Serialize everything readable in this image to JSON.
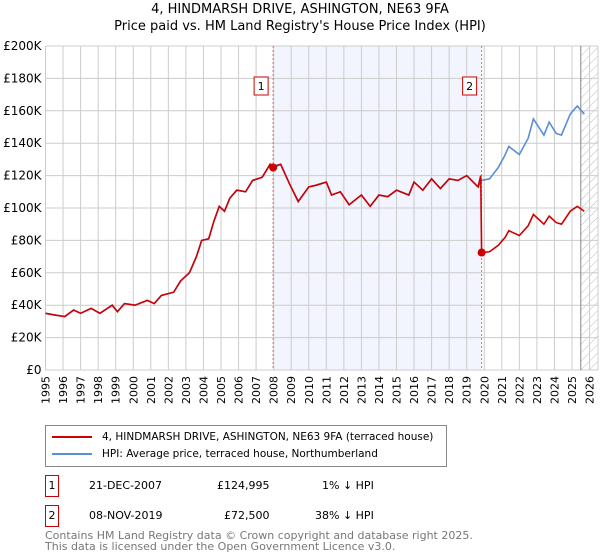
{
  "title": "4, HINDMARSH DRIVE, ASHINGTON, NE63 9FA",
  "subtitle": "Price paid vs. HM Land Registry's House Price Index (HPI)",
  "chart_data": {
    "type": "line",
    "ylim": [
      0,
      200000
    ],
    "xlim": [
      1995,
      2026
    ],
    "yticks": [
      {
        "v": 0,
        "l": "£0"
      },
      {
        "v": 20000,
        "l": "£20K"
      },
      {
        "v": 40000,
        "l": "£40K"
      },
      {
        "v": 60000,
        "l": "£60K"
      },
      {
        "v": 80000,
        "l": "£80K"
      },
      {
        "v": 100000,
        "l": "£100K"
      },
      {
        "v": 120000,
        "l": "£120K"
      },
      {
        "v": 140000,
        "l": "£140K"
      },
      {
        "v": 160000,
        "l": "£160K"
      },
      {
        "v": 180000,
        "l": "£180K"
      },
      {
        "v": 200000,
        "l": "£200K"
      }
    ],
    "xticks": [
      "1995",
      "1996",
      "1997",
      "1998",
      "1999",
      "2000",
      "2001",
      "2002",
      "2003",
      "2004",
      "2005",
      "2006",
      "2007",
      "2008",
      "2009",
      "2010",
      "2011",
      "2012",
      "2013",
      "2014",
      "2015",
      "2016",
      "2017",
      "2018",
      "2019",
      "2020",
      "2021",
      "2022",
      "2023",
      "2024",
      "2025",
      "2026"
    ],
    "shaded_range": [
      2007.97,
      2019.85
    ],
    "forecast_from": 2025.5,
    "series": [
      {
        "name": "HPI: Average price, terraced house, Northumberland",
        "color": "#5b8fd4",
        "points": [
          [
            1995,
            35
          ],
          [
            1995.5,
            34
          ],
          [
            1996.1,
            33
          ],
          [
            1996.6,
            37
          ],
          [
            1997,
            35
          ],
          [
            1997.6,
            38
          ],
          [
            1998.1,
            35
          ],
          [
            1998.8,
            40
          ],
          [
            1999.1,
            36
          ],
          [
            1999.5,
            41
          ],
          [
            2000.1,
            40
          ],
          [
            2000.8,
            43
          ],
          [
            2001.2,
            41
          ],
          [
            2001.6,
            46
          ],
          [
            2002.3,
            48
          ],
          [
            2002.7,
            55
          ],
          [
            2003.2,
            60
          ],
          [
            2003.6,
            70
          ],
          [
            2003.9,
            80
          ],
          [
            2004.3,
            81
          ],
          [
            2004.6,
            92
          ],
          [
            2004.9,
            101
          ],
          [
            2005.2,
            98
          ],
          [
            2005.5,
            106
          ],
          [
            2005.9,
            111
          ],
          [
            2006.4,
            110
          ],
          [
            2006.8,
            117
          ],
          [
            2007.35,
            119
          ],
          [
            2007.8,
            127
          ],
          [
            2007.97,
            126
          ],
          [
            2008.4,
            127
          ],
          [
            2008.9,
            115
          ],
          [
            2009.4,
            104
          ],
          [
            2010,
            113
          ],
          [
            2010.4,
            114
          ],
          [
            2011,
            116
          ],
          [
            2011.3,
            108
          ],
          [
            2011.8,
            110
          ],
          [
            2012.3,
            102
          ],
          [
            2013,
            108
          ],
          [
            2013.5,
            101
          ],
          [
            2014,
            108
          ],
          [
            2014.5,
            107
          ],
          [
            2015,
            111
          ],
          [
            2015.7,
            108
          ],
          [
            2016,
            116
          ],
          [
            2016.5,
            111
          ],
          [
            2017,
            118
          ],
          [
            2017.5,
            112
          ],
          [
            2018,
            118
          ],
          [
            2018.5,
            117
          ],
          [
            2019,
            120
          ],
          [
            2019.65,
            113
          ],
          [
            2019.85,
            117
          ],
          [
            2020.3,
            118
          ],
          [
            2020.8,
            125
          ],
          [
            2021.2,
            133
          ],
          [
            2021.4,
            138
          ],
          [
            2022,
            133
          ],
          [
            2022.5,
            143
          ],
          [
            2022.8,
            155
          ],
          [
            2023.4,
            145
          ],
          [
            2023.7,
            153
          ],
          [
            2024.1,
            146
          ],
          [
            2024.4,
            145
          ],
          [
            2024.9,
            158
          ],
          [
            2025.3,
            163
          ],
          [
            2025.7,
            158
          ]
        ]
      },
      {
        "name": "4, HINDMARSH DRIVE, ASHINGTON, NE63 9FA (terraced house)",
        "color": "#cc0000",
        "points": [
          [
            1995,
            35
          ],
          [
            1995.5,
            34
          ],
          [
            1996.1,
            33
          ],
          [
            1996.6,
            37
          ],
          [
            1997,
            35
          ],
          [
            1997.6,
            38
          ],
          [
            1998.1,
            35
          ],
          [
            1998.8,
            40
          ],
          [
            1999.1,
            36
          ],
          [
            1999.5,
            41
          ],
          [
            2000.1,
            40
          ],
          [
            2000.8,
            43
          ],
          [
            2001.2,
            41
          ],
          [
            2001.6,
            46
          ],
          [
            2002.3,
            48
          ],
          [
            2002.7,
            55
          ],
          [
            2003.2,
            60
          ],
          [
            2003.6,
            70
          ],
          [
            2003.9,
            80
          ],
          [
            2004.3,
            81
          ],
          [
            2004.6,
            92
          ],
          [
            2004.9,
            101
          ],
          [
            2005.2,
            98
          ],
          [
            2005.5,
            106
          ],
          [
            2005.9,
            111
          ],
          [
            2006.4,
            110
          ],
          [
            2006.8,
            117
          ],
          [
            2007.35,
            119
          ],
          [
            2007.8,
            127
          ],
          [
            2007.97,
            125
          ],
          [
            2008.4,
            127
          ],
          [
            2008.9,
            115
          ],
          [
            2009.4,
            104
          ],
          [
            2010,
            113
          ],
          [
            2010.4,
            114
          ],
          [
            2011,
            116
          ],
          [
            2011.3,
            108
          ],
          [
            2011.8,
            110
          ],
          [
            2012.3,
            102
          ],
          [
            2013,
            108
          ],
          [
            2013.5,
            101
          ],
          [
            2014,
            108
          ],
          [
            2014.5,
            107
          ],
          [
            2015,
            111
          ],
          [
            2015.7,
            108
          ],
          [
            2016,
            116
          ],
          [
            2016.5,
            111
          ],
          [
            2017,
            118
          ],
          [
            2017.5,
            112
          ],
          [
            2018,
            118
          ],
          [
            2018.5,
            117
          ],
          [
            2019,
            120
          ],
          [
            2019.65,
            113
          ],
          [
            2019.8,
            120
          ],
          [
            2019.85,
            72.5
          ],
          [
            2020.3,
            73
          ],
          [
            2020.8,
            77
          ],
          [
            2021.2,
            82
          ],
          [
            2021.4,
            86
          ],
          [
            2022,
            83
          ],
          [
            2022.5,
            89
          ],
          [
            2022.8,
            96
          ],
          [
            2023.4,
            90
          ],
          [
            2023.7,
            95
          ],
          [
            2024.1,
            91
          ],
          [
            2024.4,
            90
          ],
          [
            2024.9,
            98
          ],
          [
            2025.3,
            101
          ],
          [
            2025.7,
            98
          ]
        ]
      }
    ],
    "sales": [
      {
        "label": "1",
        "x": 2007.97,
        "y": 124995
      },
      {
        "label": "2",
        "x": 2019.85,
        "y": 72500
      }
    ]
  },
  "legend": {
    "property": "4, HINDMARSH DRIVE, ASHINGTON, NE63 9FA (terraced house)",
    "hpi": "HPI: Average price, terraced house, Northumberland"
  },
  "transactions": [
    {
      "num": "1",
      "date": "21-DEC-2007",
      "price": "£124,995",
      "diff": "1% ↓ HPI"
    },
    {
      "num": "2",
      "date": "08-NOV-2019",
      "price": "£72,500",
      "diff": "38% ↓ HPI"
    }
  ],
  "footer": {
    "line1": "Contains HM Land Registry data © Crown copyright and database right 2025.",
    "line2": "This data is licensed under the Open Government Licence v3.0."
  }
}
